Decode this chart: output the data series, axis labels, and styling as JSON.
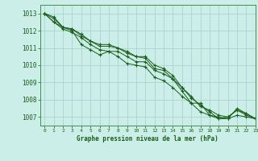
{
  "title": "Graphe pression niveau de la mer (hPa)",
  "bg_color": "#cceee8",
  "grid_color": "#aad4ce",
  "line_color": "#1a5c1a",
  "spine_color": "#4a8c4a",
  "xlim": [
    -0.5,
    23
  ],
  "ylim": [
    1006.5,
    1013.5
  ],
  "yticks": [
    1007,
    1008,
    1009,
    1010,
    1011,
    1012,
    1013
  ],
  "xticks": [
    0,
    1,
    2,
    3,
    4,
    5,
    6,
    7,
    8,
    9,
    10,
    11,
    12,
    13,
    14,
    15,
    16,
    17,
    18,
    19,
    20,
    21,
    22,
    23
  ],
  "series": [
    [
      1013.0,
      1012.8,
      1012.2,
      1012.0,
      1011.2,
      1010.9,
      1010.6,
      1010.8,
      1010.8,
      1010.5,
      1010.2,
      1010.2,
      1009.7,
      1009.5,
      1009.2,
      1008.7,
      1008.2,
      1007.6,
      1007.4,
      1007.1,
      1007.0,
      1007.4,
      1007.2,
      1006.9
    ],
    [
      1013.0,
      1012.7,
      1012.2,
      1012.1,
      1011.8,
      1011.4,
      1011.1,
      1011.1,
      1011.0,
      1010.8,
      1010.5,
      1010.4,
      1009.8,
      1009.7,
      1009.2,
      1008.5,
      1007.8,
      1007.8,
      1007.1,
      1007.0,
      1006.9,
      1007.5,
      1007.2,
      1006.9
    ],
    [
      1013.0,
      1012.5,
      1012.2,
      1012.1,
      1011.7,
      1011.4,
      1011.2,
      1011.2,
      1011.0,
      1010.7,
      1010.5,
      1010.5,
      1010.0,
      1009.8,
      1009.4,
      1008.7,
      1008.1,
      1007.7,
      1007.3,
      1006.9,
      1007.0,
      1007.4,
      1007.1,
      1006.9
    ],
    [
      1013.0,
      1012.5,
      1012.1,
      1011.9,
      1011.6,
      1011.2,
      1010.9,
      1010.8,
      1010.5,
      1010.1,
      1010.0,
      1009.9,
      1009.3,
      1009.1,
      1008.7,
      1008.2,
      1007.8,
      1007.3,
      1007.1,
      1006.9,
      1006.9,
      1007.1,
      1007.0,
      1006.9
    ]
  ]
}
